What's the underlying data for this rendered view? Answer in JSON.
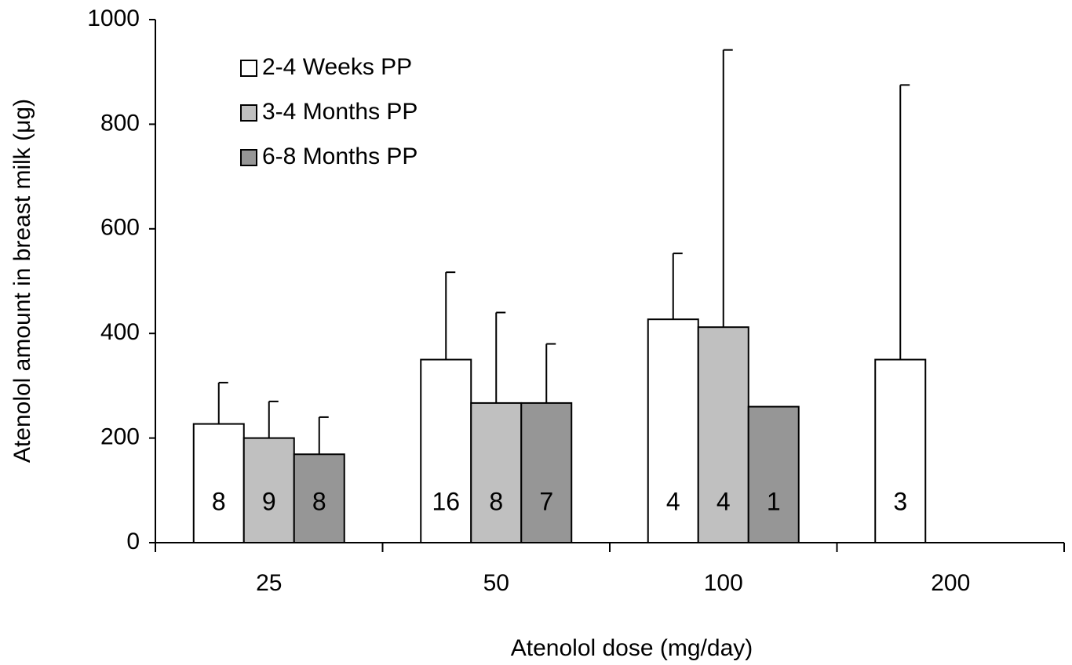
{
  "chart_data": {
    "type": "bar",
    "x_label": "Atenolol dose (mg/day)",
    "y_label": "Atenolol amount in breast milk (μg)",
    "categories": [
      "25",
      "50",
      "100",
      "200"
    ],
    "series": [
      {
        "name": "2-4 Weeks PP",
        "color": "#ffffff",
        "values": [
          227,
          350,
          427,
          350
        ],
        "errors": [
          79,
          167,
          126,
          525
        ],
        "n_labels": [
          "8",
          "16",
          "4",
          "3"
        ]
      },
      {
        "name": "3-4 Months PP",
        "color": "#c0c0c0",
        "values": [
          200,
          267,
          412,
          null
        ],
        "errors": [
          70,
          173,
          530,
          null
        ],
        "n_labels": [
          "9",
          "8",
          "4",
          null
        ]
      },
      {
        "name": "6-8 Months PP",
        "color": "#969696",
        "values": [
          169,
          267,
          260,
          null
        ],
        "errors": [
          71,
          113,
          null,
          null
        ],
        "n_labels": [
          "8",
          "7",
          "1",
          null
        ]
      }
    ],
    "ylim": [
      0,
      1000
    ],
    "yticks": [
      0,
      200,
      400,
      600,
      800,
      1000
    ],
    "grid": false,
    "legend": "upper left"
  }
}
